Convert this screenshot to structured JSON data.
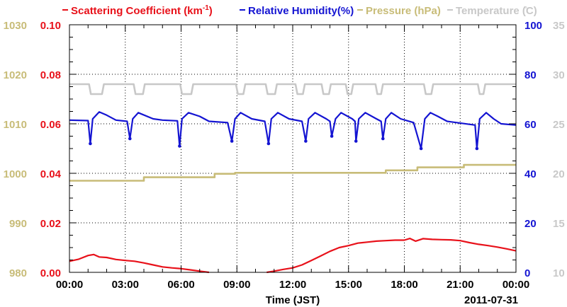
{
  "chart_data": {
    "type": "line",
    "legend": [
      {
        "name": "Scattering Coefficient (km",
        "sup": "-1",
        "close": ")",
        "color": "#e8111a"
      },
      {
        "name": "Relative Humidity(%)",
        "color": "#1414d2"
      },
      {
        "name": "Pressure (hPa)",
        "color": "#c8bc78"
      },
      {
        "name": "Temperature (̊C)",
        "color": "#c8c8c8"
      }
    ],
    "xlabel": "Time (JST)",
    "date_label": "2011-07-31",
    "x_ticks": [
      "00:00",
      "03:00",
      "06:00",
      "09:00",
      "12:00",
      "15:00",
      "18:00",
      "21:00",
      "00:00"
    ],
    "xlim_hours": [
      0,
      24
    ],
    "axes": {
      "pressure": {
        "ticks": [
          "1030",
          "1020",
          "1010",
          "1000",
          "990",
          "980"
        ],
        "ylim": [
          980,
          1030
        ],
        "color": "#c8bc78"
      },
      "scattering": {
        "ticks": [
          "0.10",
          "0.08",
          "0.06",
          "0.04",
          "0.02",
          "0.00"
        ],
        "ylim": [
          0,
          0.1
        ],
        "color": "#e8111a"
      },
      "humidity": {
        "ticks": [
          "100",
          "80",
          "60",
          "40",
          "20",
          "0"
        ],
        "ylim": [
          0,
          100
        ],
        "color": "#1414d2"
      },
      "temperature": {
        "ticks": [
          "35",
          "30",
          "25",
          "20",
          "15",
          "10"
        ],
        "ylim": [
          10,
          35
        ],
        "color": "#c8c8c8"
      }
    },
    "grid": true,
    "series": [
      {
        "name": "Scattering Coefficient",
        "axis": "scattering",
        "color": "#e8111a",
        "points": [
          [
            0,
            0.0045
          ],
          [
            0.5,
            0.0053
          ],
          [
            1.0,
            0.0068
          ],
          [
            1.3,
            0.0072
          ],
          [
            1.6,
            0.0062
          ],
          [
            2.0,
            0.006
          ],
          [
            2.5,
            0.0052
          ],
          [
            3.0,
            0.0048
          ],
          [
            3.5,
            0.0045
          ],
          [
            4.0,
            0.0038
          ],
          [
            4.5,
            0.003
          ],
          [
            5.0,
            0.0022
          ],
          [
            5.5,
            0.0018
          ],
          [
            6.0,
            0.0015
          ],
          [
            6.5,
            0.001
          ],
          [
            7.0,
            0.0005
          ],
          [
            7.5,
            0.0
          ],
          [
            8.5,
            null
          ],
          [
            10.6,
            0.0
          ],
          [
            11.0,
            0.0005
          ],
          [
            11.5,
            0.0012
          ],
          [
            12.0,
            0.0018
          ],
          [
            12.5,
            0.003
          ],
          [
            13.0,
            0.0048
          ],
          [
            13.5,
            0.0066
          ],
          [
            14.0,
            0.0085
          ],
          [
            14.5,
            0.01
          ],
          [
            15.0,
            0.0108
          ],
          [
            15.5,
            0.0118
          ],
          [
            16.0,
            0.0122
          ],
          [
            16.5,
            0.0126
          ],
          [
            17.0,
            0.0128
          ],
          [
            17.5,
            0.013
          ],
          [
            18.0,
            0.013
          ],
          [
            18.3,
            0.0137
          ],
          [
            18.6,
            0.0126
          ],
          [
            19.0,
            0.0136
          ],
          [
            19.5,
            0.0133
          ],
          [
            20.0,
            0.0132
          ],
          [
            20.5,
            0.0131
          ],
          [
            21.0,
            0.0128
          ],
          [
            21.5,
            0.012
          ],
          [
            22.0,
            0.0113
          ],
          [
            22.5,
            0.0108
          ],
          [
            23.0,
            0.0102
          ],
          [
            23.5,
            0.0095
          ],
          [
            24.0,
            0.0087
          ]
        ]
      },
      {
        "name": "Relative Humidity",
        "axis": "humidity",
        "color": "#1414d2",
        "dips": [
          1.12,
          3.25,
          5.92,
          8.73,
          10.7,
          12.7,
          14.1,
          15.4,
          16.85,
          18.9,
          21.9
        ],
        "dip_values": [
          52,
          54,
          51,
          53,
          52,
          53,
          55,
          53,
          54,
          50,
          50
        ],
        "points": [
          [
            0,
            61.5
          ],
          [
            1.0,
            61.3
          ],
          [
            1.12,
            52
          ],
          [
            1.25,
            62
          ],
          [
            1.6,
            64.8
          ],
          [
            2.0,
            63.5
          ],
          [
            2.5,
            61.5
          ],
          [
            3.1,
            61.0
          ],
          [
            3.25,
            54
          ],
          [
            3.4,
            62
          ],
          [
            3.7,
            64.5
          ],
          [
            4.5,
            62
          ],
          [
            5.0,
            61.5
          ],
          [
            5.8,
            61.2
          ],
          [
            5.92,
            51
          ],
          [
            6.05,
            62
          ],
          [
            6.4,
            64.5
          ],
          [
            7.0,
            63
          ],
          [
            7.5,
            61
          ],
          [
            8.5,
            60.5
          ],
          [
            8.73,
            53
          ],
          [
            8.9,
            62
          ],
          [
            9.2,
            64.5
          ],
          [
            9.8,
            62
          ],
          [
            10.5,
            61
          ],
          [
            10.7,
            52
          ],
          [
            10.85,
            62
          ],
          [
            11.2,
            64.5
          ],
          [
            11.8,
            62
          ],
          [
            12.5,
            61
          ],
          [
            12.7,
            53
          ],
          [
            12.85,
            62
          ],
          [
            13.2,
            64.5
          ],
          [
            13.8,
            62
          ],
          [
            14.0,
            61
          ],
          [
            14.1,
            55
          ],
          [
            14.3,
            62
          ],
          [
            14.6,
            64.5
          ],
          [
            15.2,
            62
          ],
          [
            15.35,
            61
          ],
          [
            15.4,
            53
          ],
          [
            15.55,
            62
          ],
          [
            15.9,
            64.5
          ],
          [
            16.5,
            62
          ],
          [
            16.75,
            61
          ],
          [
            16.85,
            54
          ],
          [
            17.0,
            62
          ],
          [
            17.3,
            64.5
          ],
          [
            17.8,
            62
          ],
          [
            18.5,
            60.5
          ],
          [
            18.9,
            50
          ],
          [
            19.1,
            62
          ],
          [
            19.4,
            64.5
          ],
          [
            19.8,
            63
          ],
          [
            20.3,
            61
          ],
          [
            21.8,
            59.5
          ],
          [
            21.9,
            50
          ],
          [
            22.05,
            62
          ],
          [
            22.4,
            64.5
          ],
          [
            22.8,
            62
          ],
          [
            23.2,
            60.0
          ],
          [
            24.0,
            59.5
          ]
        ]
      },
      {
        "name": "Pressure",
        "axis": "pressure",
        "color": "#c8bc78",
        "points": [
          [
            0,
            998.5
          ],
          [
            4.0,
            998.5
          ],
          [
            4.0,
            999.2
          ],
          [
            7.8,
            999.2
          ],
          [
            7.8,
            999.9
          ],
          [
            8.9,
            999.9
          ],
          [
            8.9,
            1000.1
          ],
          [
            17.0,
            1000.1
          ],
          [
            17.0,
            1000.6
          ],
          [
            18.7,
            1000.6
          ],
          [
            18.7,
            1001.2
          ],
          [
            21.2,
            1001.2
          ],
          [
            21.2,
            1001.7
          ],
          [
            24.0,
            1001.7
          ]
        ]
      },
      {
        "name": "Temperature",
        "axis": "temperature",
        "color": "#c8c8c8",
        "points": [
          [
            0,
            29
          ],
          [
            1.05,
            29
          ],
          [
            1.15,
            28
          ],
          [
            1.75,
            28
          ],
          [
            1.85,
            29
          ],
          [
            3.45,
            29
          ],
          [
            3.55,
            28
          ],
          [
            3.95,
            28
          ],
          [
            4.05,
            29
          ],
          [
            5.95,
            29
          ],
          [
            6.05,
            28
          ],
          [
            6.55,
            28
          ],
          [
            6.65,
            29
          ],
          [
            8.95,
            29
          ],
          [
            9.05,
            28
          ],
          [
            9.35,
            28
          ],
          [
            9.45,
            29
          ],
          [
            10.55,
            29
          ],
          [
            10.65,
            28
          ],
          [
            11.05,
            28
          ],
          [
            11.15,
            29
          ],
          [
            12.15,
            29
          ],
          [
            12.25,
            28
          ],
          [
            12.55,
            28
          ],
          [
            12.65,
            29
          ],
          [
            13.55,
            29
          ],
          [
            13.65,
            28
          ],
          [
            13.95,
            28
          ],
          [
            14.05,
            29
          ],
          [
            14.85,
            29
          ],
          [
            14.95,
            28
          ],
          [
            15.15,
            28
          ],
          [
            15.25,
            29
          ],
          [
            16.45,
            29
          ],
          [
            16.55,
            28
          ],
          [
            16.75,
            28
          ],
          [
            16.85,
            29
          ],
          [
            19.05,
            29
          ],
          [
            19.15,
            28
          ],
          [
            19.45,
            28
          ],
          [
            19.55,
            29
          ],
          [
            21.95,
            29
          ],
          [
            22.05,
            28
          ],
          [
            22.25,
            28
          ],
          [
            22.35,
            29
          ],
          [
            24.0,
            29
          ]
        ]
      }
    ]
  }
}
